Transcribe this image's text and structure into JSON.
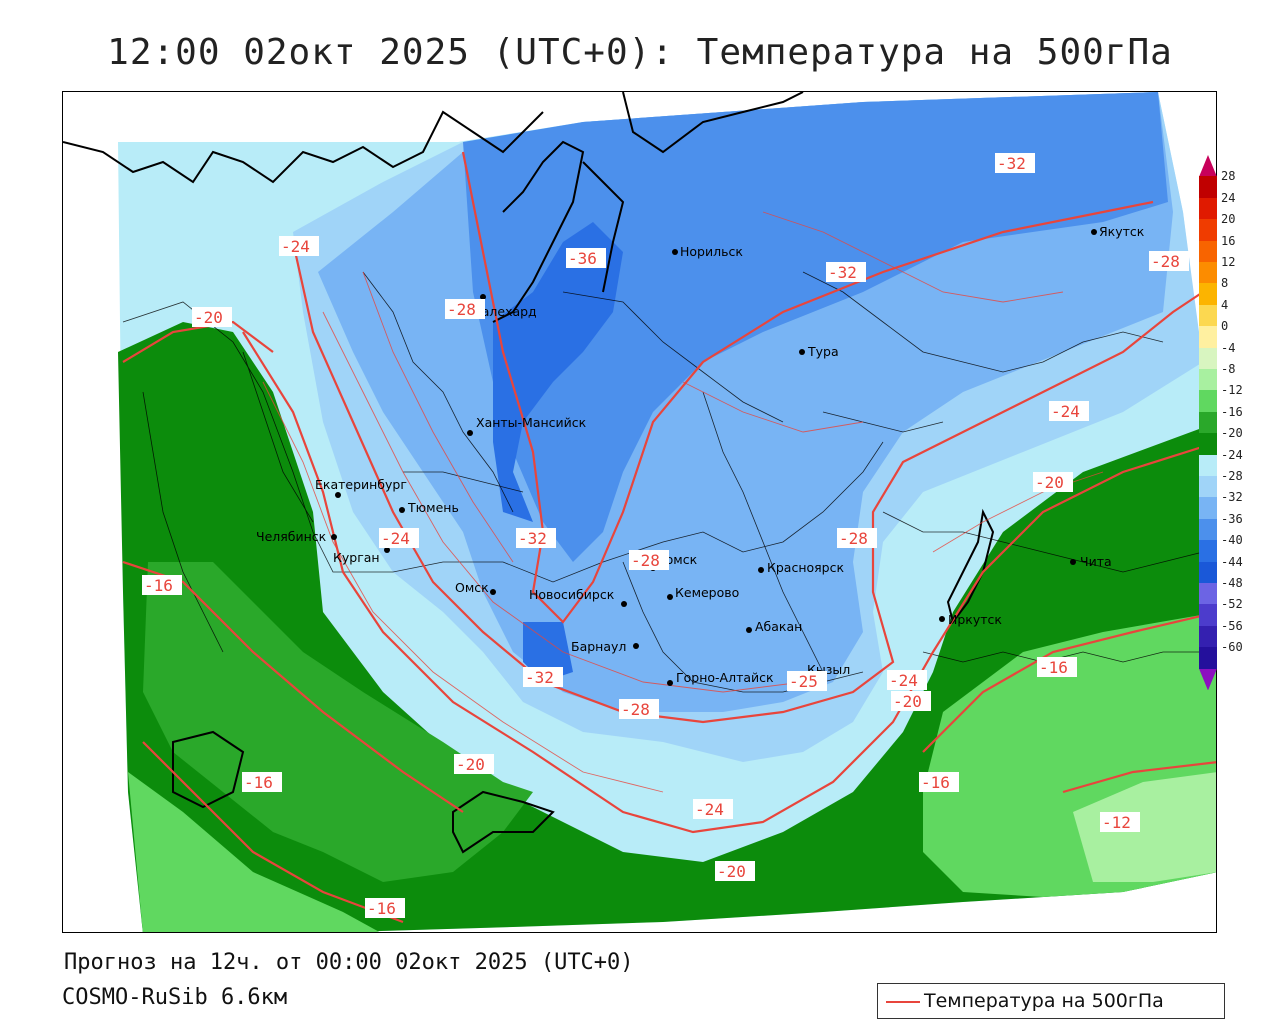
{
  "title": "12:00 02окт 2025 (UTC+0): Температура на 500гПа",
  "footer": {
    "forecast": "Прогноз на 12ч. от 00:00 02окт 2025 (UTC+0)",
    "model": "COSMO-RuSib 6.6км"
  },
  "legend": {
    "label": "Температура на 500гПа",
    "line_color": "#e8453c"
  },
  "colorbar": {
    "labels": [
      "28",
      "24",
      "20",
      "16",
      "12",
      "8",
      "4",
      "0",
      "-4",
      "-8",
      "-12",
      "-16",
      "-20",
      "-24",
      "-28",
      "-32",
      "-36",
      "-40",
      "-44",
      "-48",
      "-52",
      "-56",
      "-60"
    ],
    "colors": [
      "#c8005a",
      "#c00000",
      "#e01a00",
      "#f03c00",
      "#f86400",
      "#fc8c00",
      "#fcb400",
      "#fcd850",
      "#fff0a0",
      "#d8f5c0",
      "#a8f0a0",
      "#60d860",
      "#2aa82a",
      "#0c8c0c",
      "#b8ecf8",
      "#a0d4f8",
      "#78b4f4",
      "#4c90ec",
      "#2a70e4",
      "#1a58d8",
      "#6c64e4",
      "#4c3ccc",
      "#3420b0",
      "#24109c",
      "#8c10c0"
    ]
  },
  "cities": [
    {
      "name": "Норильск"
    },
    {
      "name": "Якутск"
    },
    {
      "name": "Салехард"
    },
    {
      "name": "Тура"
    },
    {
      "name": "Ханты-Мансийск"
    },
    {
      "name": "Екатеринбург"
    },
    {
      "name": "Тюмень"
    },
    {
      "name": "Челябинск"
    },
    {
      "name": "Курган"
    },
    {
      "name": "Омск"
    },
    {
      "name": "Томск"
    },
    {
      "name": "Новосибирск"
    },
    {
      "name": "Кемерово"
    },
    {
      "name": "Красноярск"
    },
    {
      "name": "Барнаул"
    },
    {
      "name": "Абакан"
    },
    {
      "name": "Горно-Алтайск"
    },
    {
      "name": "Кызыл"
    },
    {
      "name": "Иркутск"
    },
    {
      "name": "Чита"
    }
  ],
  "isolines": [
    "-32",
    "-36",
    "-24",
    "-28",
    "-32",
    "-28",
    "-20",
    "-24",
    "-24",
    "-20",
    "-32",
    "-28",
    "-28",
    "-16",
    "-32",
    "-28",
    "-25",
    "-24",
    "-20",
    "-16",
    "-16",
    "-20",
    "-16",
    "-24",
    "-20",
    "-16",
    "-12",
    "-16"
  ]
}
